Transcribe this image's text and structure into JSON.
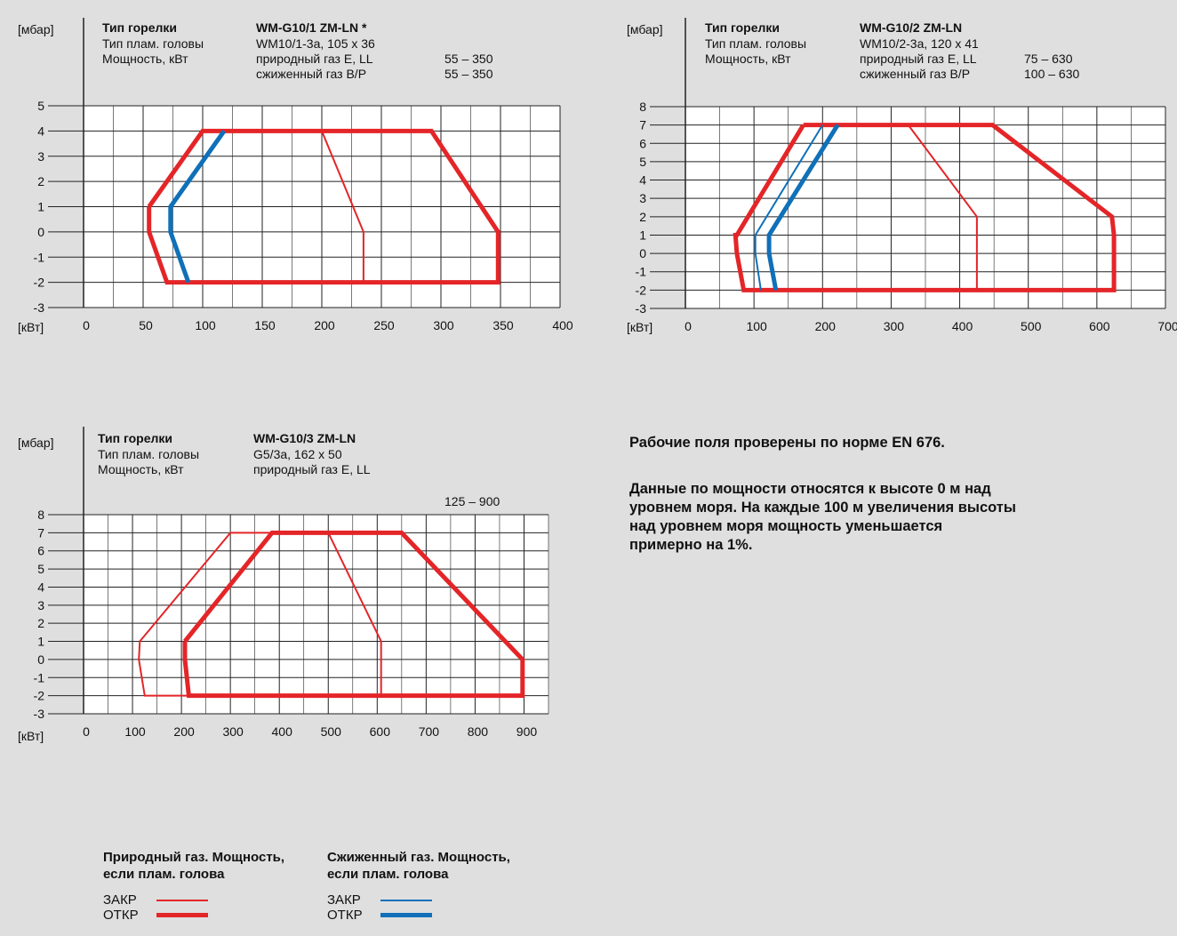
{
  "colors": {
    "natural_gas": "#e42528",
    "liquid_gas": "#1070b8",
    "grid": "#222222",
    "plot_bg": "#ffffff",
    "page_bg": "#dfdfe0"
  },
  "axis_units": {
    "y": "[мбар]",
    "x": "[кВт]"
  },
  "notes": {
    "line1": "Рабочие поля проверены по норме EN 676.",
    "line2_1": "Данные по мощности относятся к высоте 0 м над",
    "line2_2": "уровнем моря. На каждые 100 м увеличения высоты",
    "line2_3": "над уровнем моря мощность уменьшается",
    "line2_4": "примерно на 1%."
  },
  "legend": {
    "natural": {
      "title1": "Природный газ. Мощность,",
      "title2": "если плам. голова",
      "closed": "ЗАКР",
      "open": "ОТКР"
    },
    "liquid": {
      "title1": "Сжиженный газ. Мощность,",
      "title2": "если плам. голова",
      "closed": "ЗАКР",
      "open": "ОТКР"
    }
  },
  "chart_data": [
    {
      "id": "c1",
      "type": "line",
      "info": {
        "r1": [
          "Тип горелки",
          "WM-G10/1 ZM-LN *",
          "",
          ""
        ],
        "r2": [
          "Тип плам. головы",
          "WM10/1-3a, 105 x 36",
          "",
          ""
        ],
        "r3": [
          "Мощность, кВт",
          "природный газ E, LL",
          "55 – 350",
          ""
        ],
        "r4": [
          "",
          "сжиженный газ B/P",
          "55 – 350",
          ""
        ]
      },
      "xlim": [
        0,
        400
      ],
      "ylim": [
        -3,
        5
      ],
      "xticks": [
        0,
        50,
        100,
        150,
        200,
        250,
        300,
        350,
        400
      ],
      "yticks": [
        5,
        4,
        3,
        2,
        1,
        0,
        -1,
        -2,
        -3
      ],
      "grid_step": 25,
      "series": [
        {
          "gas": "natural",
          "state": "open",
          "x": [
            55,
            100,
            292,
            348,
            348,
            70,
            55,
            55
          ],
          "y": [
            1,
            4,
            4,
            0,
            -2,
            -2,
            0,
            1
          ]
        },
        {
          "gas": "natural",
          "state": "closed",
          "x": [
            200,
            235,
            235
          ],
          "y": [
            4,
            0,
            -2
          ]
        },
        {
          "gas": "liquid",
          "state": "open",
          "x": [
            118,
            73,
            73,
            88
          ],
          "y": [
            4,
            1,
            0,
            -2
          ]
        }
      ]
    },
    {
      "id": "c2",
      "type": "line",
      "info": {
        "r1": [
          "Тип горелки",
          "WM-G10/2 ZM-LN",
          "",
          ""
        ],
        "r2": [
          "Тип плам. головы",
          "WM10/2-3a, 120 x 41",
          "",
          ""
        ],
        "r3": [
          "Мощность, кВт",
          "природный газ E, LL",
          "75 – 630",
          ""
        ],
        "r4": [
          "",
          "сжиженный газ B/P",
          "100 – 630",
          ""
        ]
      },
      "xlim": [
        0,
        700
      ],
      "ylim": [
        -3,
        8
      ],
      "xticks": [
        0,
        100,
        200,
        300,
        400,
        500,
        600,
        700
      ],
      "yticks": [
        8,
        7,
        6,
        5,
        4,
        3,
        2,
        1,
        0,
        -1,
        -2,
        -3
      ],
      "grid_step": 50,
      "series": [
        {
          "gas": "natural",
          "state": "open",
          "x": [
            172,
            448,
            622,
            625,
            625,
            85,
            75,
            73,
            75,
            172
          ],
          "y": [
            7,
            7,
            2,
            1,
            -2,
            -2,
            0,
            1,
            1,
            7
          ]
        },
        {
          "gas": "natural",
          "state": "closed",
          "x": [
            325,
            425,
            425
          ],
          "y": [
            7,
            2,
            -2
          ]
        },
        {
          "gas": "liquid",
          "state": "closed",
          "x": [
            200,
            102,
            102,
            110
          ],
          "y": [
            7,
            1,
            0,
            -2
          ]
        },
        {
          "gas": "liquid",
          "state": "open",
          "x": [
            222,
            122,
            122,
            132
          ],
          "y": [
            7,
            1,
            0,
            -2
          ]
        }
      ]
    },
    {
      "id": "c3",
      "type": "line",
      "info": {
        "r1": [
          "Тип горелки",
          "WM-G10/3 ZM-LN",
          "",
          ""
        ],
        "r2": [
          "Тип плам. головы",
          "G5/3a, 162 x 50",
          "",
          ""
        ],
        "r3": [
          "Мощность, кВт",
          "природный газ E, LL",
          "",
          ""
        ],
        "r4": [
          "",
          "",
          "125 – 900",
          ""
        ]
      },
      "xlim": [
        0,
        950
      ],
      "ylim": [
        -3,
        8
      ],
      "xticks": [
        0,
        100,
        200,
        300,
        400,
        500,
        600,
        700,
        800,
        900
      ],
      "yticks": [
        8,
        7,
        6,
        5,
        4,
        3,
        2,
        1,
        0,
        -1,
        -2,
        -3
      ],
      "grid_step": 50,
      "series": [
        {
          "gas": "natural",
          "state": "open",
          "x": [
            207,
            385,
            650,
            897,
            897,
            215,
            207,
            207
          ],
          "y": [
            1,
            7,
            7,
            0,
            -2,
            -2,
            0,
            1
          ]
        },
        {
          "gas": "natural",
          "state": "closed",
          "x": [
            115,
            300,
            500,
            608,
            608
          ],
          "y": [
            1,
            7,
            7,
            1,
            -2
          ]
        },
        {
          "gas": "natural",
          "state": "closed",
          "x": [
            115,
            113,
            125,
            215
          ],
          "y": [
            1,
            0,
            -2,
            -2
          ]
        }
      ]
    }
  ]
}
